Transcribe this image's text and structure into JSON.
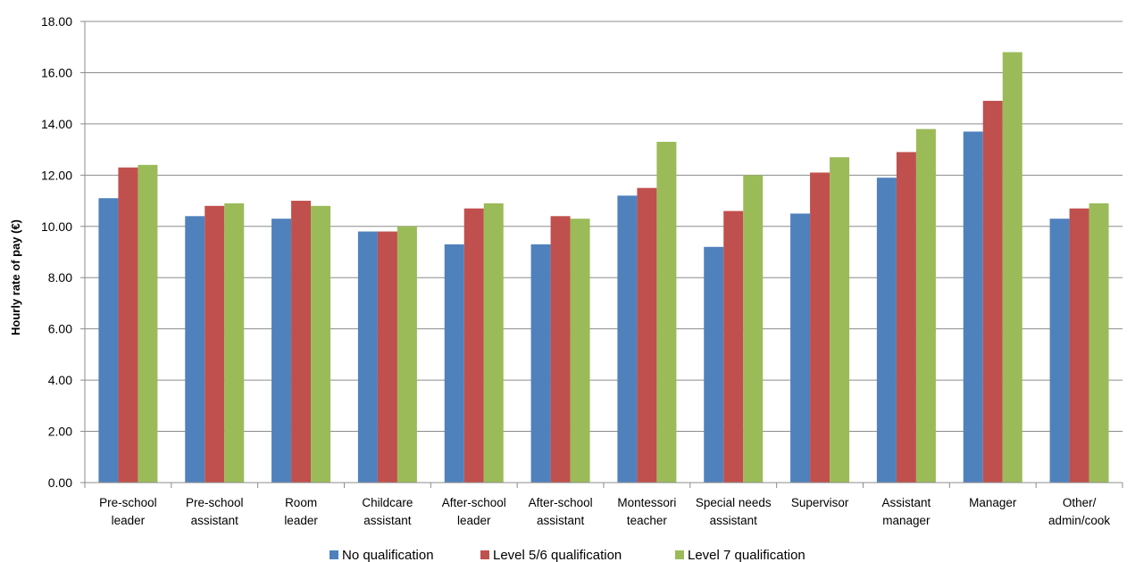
{
  "chart_data": {
    "type": "bar",
    "title": "",
    "xlabel": "",
    "ylabel": "Hourly rate of pay (€)",
    "ylim": [
      0,
      18
    ],
    "ytick_step": 2,
    "ytick_labels": [
      "0.00",
      "2.00",
      "4.00",
      "6.00",
      "8.00",
      "10.00",
      "12.00",
      "14.00",
      "16.00",
      "18.00"
    ],
    "grid": true,
    "legend_position": "bottom",
    "categories": [
      [
        "Pre-school",
        "leader"
      ],
      [
        "Pre-school",
        "assistant"
      ],
      [
        "Room",
        "leader"
      ],
      [
        "Childcare",
        "assistant"
      ],
      [
        "After-school",
        "leader"
      ],
      [
        "After-school",
        "assistant"
      ],
      [
        "Montessori",
        "teacher"
      ],
      [
        "Special needs",
        "assistant"
      ],
      [
        "Supervisor"
      ],
      [
        "Assistant",
        "manager"
      ],
      [
        "Manager"
      ],
      [
        "Other/",
        "admin/cook"
      ]
    ],
    "series": [
      {
        "name": "No qualification",
        "color": "#4f81bd",
        "values": [
          11.1,
          10.4,
          10.3,
          9.8,
          9.3,
          9.3,
          11.2,
          9.2,
          10.5,
          11.9,
          13.7,
          10.3
        ]
      },
      {
        "name": "Level 5/6 qualification",
        "color": "#c0504d",
        "values": [
          12.3,
          10.8,
          11.0,
          9.8,
          10.7,
          10.4,
          11.5,
          10.6,
          12.1,
          12.9,
          14.9,
          10.7
        ]
      },
      {
        "name": "Level 7 qualification",
        "color": "#9bbb59",
        "values": [
          12.4,
          10.9,
          10.8,
          10.0,
          10.9,
          10.3,
          13.3,
          12.0,
          12.7,
          13.8,
          16.8,
          10.9
        ]
      }
    ]
  }
}
